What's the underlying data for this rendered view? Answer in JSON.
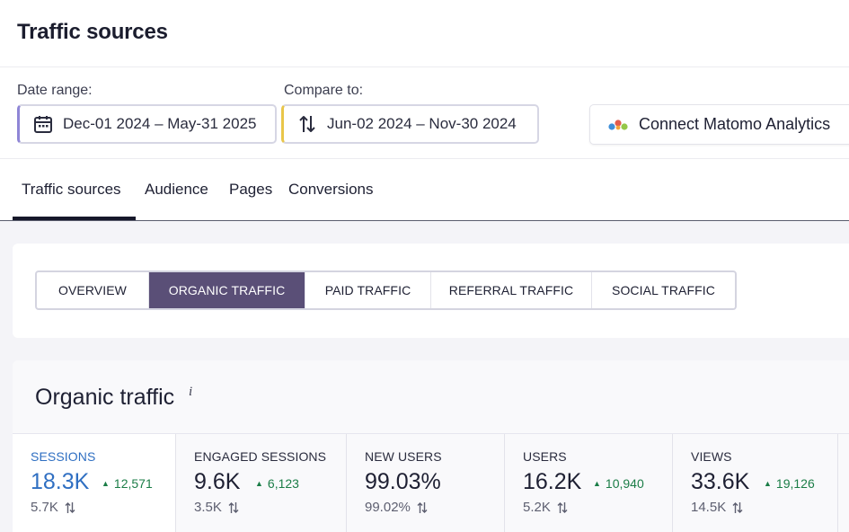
{
  "header": {
    "title": "Traffic sources"
  },
  "filters": {
    "date_range_label": "Date range:",
    "date_range_value": "Dec-01 2024 – May-31 2025",
    "compare_label": "Compare to:",
    "compare_value": "Jun-02 2024 – Nov-30 2024",
    "connect_button": "Connect Matomo Analytics"
  },
  "tabs": [
    {
      "label": "Traffic sources",
      "active": true
    },
    {
      "label": "Audience"
    },
    {
      "label": "Pages"
    },
    {
      "label": "Conversions"
    }
  ],
  "segments": [
    {
      "label": "OVERVIEW"
    },
    {
      "label": "ORGANIC TRAFFIC",
      "active": true
    },
    {
      "label": "PAID TRAFFIC"
    },
    {
      "label": "REFERRAL TRAFFIC"
    },
    {
      "label": "SOCIAL TRAFFIC"
    }
  ],
  "card": {
    "title": "Organic traffic",
    "info": "i"
  },
  "metrics": [
    {
      "label": "SESSIONS",
      "value": "18.3K",
      "delta": "12,571",
      "previous": "5.7K",
      "active": true
    },
    {
      "label": "ENGAGED SESSIONS",
      "value": "9.6K",
      "delta": "6,123",
      "previous": "3.5K"
    },
    {
      "label": "NEW USERS",
      "value": "99.03%",
      "delta": "",
      "previous": "99.02%"
    },
    {
      "label": "USERS",
      "value": "16.2K",
      "delta": "10,940",
      "previous": "5.2K"
    },
    {
      "label": "VIEWS",
      "value": "33.6K",
      "delta": "19,126",
      "previous": "14.5K"
    }
  ],
  "colors": {
    "accent_active_segment": "#5a4f77",
    "active_metric": "#2f6fc2",
    "delta_up": "#1b7d47",
    "date_range_marker": "#8f86d6",
    "compare_marker": "#e9c64a"
  },
  "icons": {
    "date_range": "calendar-icon",
    "compare": "swap-arrows-icon",
    "matomo": "matomo-logo-icon",
    "delta": "triangle-up-icon",
    "previous": "swap-arrows-icon"
  }
}
